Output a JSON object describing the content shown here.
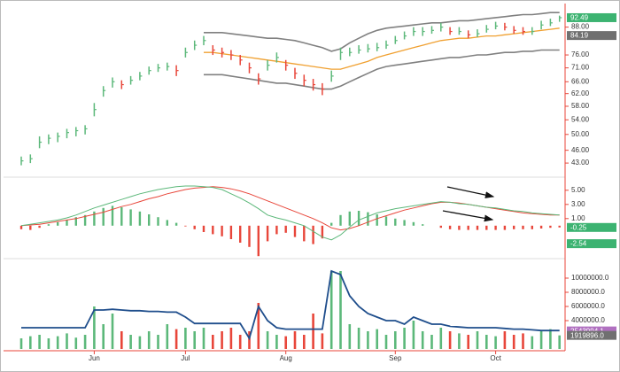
{
  "chart_data": [
    {
      "type": "ohlc",
      "yscale": "log",
      "ylim": [
        40.3,
        97.8
      ],
      "yticks": [
        {
          "value": 43,
          "label": "43.00"
        },
        {
          "value": 46,
          "label": "46.00"
        },
        {
          "value": 50,
          "label": "50.00"
        },
        {
          "value": 54,
          "label": "54.00"
        },
        {
          "value": 58,
          "label": "58.00"
        },
        {
          "value": 62,
          "label": "62.00"
        },
        {
          "value": 66,
          "label": "66.00"
        },
        {
          "value": 71,
          "label": "71.00"
        },
        {
          "value": 76,
          "label": "76.00"
        },
        {
          "value": 88,
          "label": "88.00"
        }
      ],
      "up_color": "#5cb87a",
      "down_color": "#e8463a",
      "band_color": "#808080",
      "middle_color": "#f0a030",
      "high": [
        44.5,
        45,
        49.5,
        50,
        50.5,
        51.5,
        52,
        52.5,
        59,
        64.5,
        67.5,
        66.5,
        68,
        69.5,
        71.5,
        72.5,
        73,
        72,
        79,
        82,
        84,
        80,
        79,
        78,
        76,
        73,
        69,
        74,
        77,
        74,
        71,
        68.5,
        67,
        65.5,
        70,
        79,
        79,
        80,
        80.5,
        81,
        82,
        84,
        86,
        88,
        88,
        88.5,
        90,
        88,
        88,
        86.5,
        87,
        89,
        90.5,
        90,
        88.5,
        88,
        88,
        91,
        92,
        93.5
      ],
      "low": [
        42.5,
        43,
        46.5,
        47.5,
        48,
        49,
        49.5,
        50,
        55,
        61,
        64,
        63.5,
        65,
        66.5,
        68.5,
        69.5,
        70,
        68,
        75,
        78,
        80,
        76,
        75,
        74,
        72,
        69,
        65,
        70,
        73,
        70,
        67,
        64.5,
        63,
        61.5,
        66,
        74,
        75.5,
        76.5,
        77,
        77.5,
        78.5,
        80.5,
        82.5,
        84,
        84,
        85,
        86,
        84.5,
        84.5,
        83,
        83.5,
        85.5,
        87,
        86.5,
        85,
        84.5,
        84.5,
        87,
        88.5,
        90.5
      ],
      "close": [
        43.5,
        44,
        48,
        49,
        49.5,
        50.5,
        51,
        51.5,
        57,
        63,
        66,
        65,
        66.5,
        68,
        70,
        71,
        71.5,
        70,
        77,
        80,
        82,
        78,
        77,
        76,
        74,
        71,
        67,
        72,
        75,
        72,
        69,
        66.5,
        65,
        63.5,
        68,
        77,
        77,
        78,
        78.5,
        79,
        80,
        82,
        84,
        86,
        86,
        86.5,
        88,
        86,
        86,
        84.5,
        85,
        87,
        88.5,
        88,
        86.5,
        86,
        86,
        89,
        90,
        92.49
      ],
      "upper": [
        null,
        null,
        null,
        null,
        null,
        null,
        null,
        null,
        null,
        null,
        null,
        null,
        null,
        null,
        null,
        null,
        null,
        null,
        null,
        null,
        85.5,
        85.5,
        85.5,
        85,
        84.5,
        84,
        83.5,
        83,
        83,
        82.5,
        82,
        81,
        80,
        79,
        77.5,
        78.5,
        81,
        83,
        85,
        86.5,
        87.5,
        88,
        88.5,
        89,
        89.5,
        90,
        90,
        90.5,
        91,
        91,
        91.5,
        92,
        92.5,
        93,
        93.5,
        94,
        94,
        94.5,
        95,
        95
      ],
      "middle": [
        null,
        null,
        null,
        null,
        null,
        null,
        null,
        null,
        null,
        null,
        null,
        null,
        null,
        null,
        null,
        null,
        null,
        null,
        null,
        null,
        77,
        77,
        76.5,
        76,
        75.5,
        75,
        74.5,
        74,
        73.5,
        73,
        72.5,
        72,
        71.5,
        71,
        70.5,
        70.5,
        71.5,
        72.5,
        73.5,
        75,
        76,
        77,
        78,
        79,
        80,
        81,
        82,
        82.5,
        83,
        83,
        83.5,
        84,
        84,
        84.5,
        85,
        85.5,
        86,
        86.5,
        87,
        87.5
      ],
      "lower": [
        null,
        null,
        null,
        null,
        null,
        null,
        null,
        null,
        null,
        null,
        null,
        null,
        null,
        null,
        null,
        null,
        null,
        null,
        null,
        null,
        68.5,
        68.5,
        68.5,
        68,
        67.5,
        67,
        66.5,
        66,
        65.5,
        65.5,
        65,
        64.5,
        64,
        63.5,
        63.5,
        64.5,
        66,
        67.5,
        69,
        70.5,
        71.5,
        72,
        72.5,
        73,
        73.5,
        74,
        74.5,
        75,
        75,
        75.5,
        76,
        76,
        76.5,
        77,
        77,
        77.5,
        77.5,
        78,
        78,
        78
      ],
      "badges": [
        {
          "value": 92.49,
          "color": "#3cb371"
        },
        {
          "value": 84.19,
          "color": "#707070"
        }
      ]
    },
    {
      "type": "macd",
      "ylim": [
        -4.4,
        6.6
      ],
      "yticks": [
        {
          "value": 5,
          "label": "5.00"
        },
        {
          "value": 3,
          "label": "3.00"
        },
        {
          "value": 1,
          "label": "1.00"
        }
      ],
      "macd_color": "#5cb87a",
      "signal_color": "#e8463a",
      "up_color": "#5cb87a",
      "down_color": "#e8463a",
      "histogram": [
        -0.5,
        -0.6,
        -0.3,
        0.2,
        0.5,
        0.8,
        1.2,
        1.5,
        2.0,
        2.5,
        2.8,
        2.6,
        2.3,
        2.0,
        1.6,
        1.2,
        0.8,
        0.4,
        -0.1,
        -0.5,
        -0.9,
        -1.2,
        -1.5,
        -1.9,
        -2.4,
        -3.0,
        -4.3,
        -2.2,
        -1.2,
        -1.0,
        -1.6,
        -2.2,
        -2.6,
        -1.8,
        0.4,
        1.5,
        2.0,
        2.1,
        1.9,
        1.6,
        1.3,
        1.0,
        0.8,
        0.5,
        0.2,
        0,
        -0.3,
        -0.5,
        -0.6,
        -0.6,
        -0.6,
        -0.6,
        -0.6,
        -0.6,
        -0.5,
        -0.5,
        -0.5,
        -0.4,
        -0.3,
        -0.25
      ],
      "macd": [
        0,
        0.2,
        0.4,
        0.6,
        0.8,
        1.1,
        1.5,
        2.0,
        2.5,
        2.9,
        3.3,
        3.7,
        4.1,
        4.5,
        4.8,
        5.1,
        5.3,
        5.5,
        5.6,
        5.6,
        5.5,
        5.4,
        5.1,
        4.5,
        3.9,
        3.2,
        2.4,
        1.5,
        1.1,
        0.8,
        0.4,
        0,
        -0.8,
        -1.6,
        -2.0,
        -1.3,
        -0.2,
        0.8,
        1.3,
        1.8,
        2.1,
        2.4,
        2.6,
        2.8,
        3.0,
        3.2,
        3.4,
        3.3,
        3.1,
        3.0,
        2.8,
        2.6,
        2.5,
        2.3,
        2.1,
        2.0,
        1.8,
        1.7,
        1.6,
        1.5
      ],
      "signal": [
        0,
        0.1,
        0.2,
        0.4,
        0.6,
        0.8,
        1.0,
        1.3,
        1.6,
        1.9,
        2.3,
        2.7,
        3.0,
        3.4,
        3.8,
        4.1,
        4.5,
        4.8,
        5.1,
        5.3,
        5.4,
        5.5,
        5.4,
        5.2,
        4.9,
        4.5,
        4.0,
        3.5,
        3.0,
        2.5,
        2.0,
        1.5,
        1.0,
        0.4,
        -0.3,
        -0.6,
        -0.4,
        0,
        0.5,
        1.0,
        1.4,
        1.8,
        2.2,
        2.5,
        2.8,
        3.1,
        3.3,
        3.3,
        3.2,
        3.0,
        2.8,
        2.6,
        2.4,
        2.2,
        2.0,
        1.8,
        1.7,
        1.6,
        1.5,
        1.5
      ],
      "badges": [
        {
          "value": -0.25,
          "color": "#3cb371"
        },
        {
          "value": -2.54,
          "color": "#3cb371"
        }
      ]
    },
    {
      "type": "volume",
      "ylim": [
        0,
        12500000
      ],
      "yticks": [
        {
          "value": 4000000,
          "label": "4000000.0"
        },
        {
          "value": 6000000,
          "label": "6000000.0"
        },
        {
          "value": 8000000,
          "label": "8000000.0"
        },
        {
          "value": 10000000,
          "label": "10000000.0"
        }
      ],
      "categories": [
        null,
        null,
        null,
        null,
        null,
        null,
        null,
        null,
        "Jun",
        null,
        null,
        null,
        null,
        null,
        null,
        null,
        null,
        null,
        "Jul",
        null,
        null,
        null,
        null,
        null,
        null,
        null,
        null,
        null,
        null,
        "Aug",
        null,
        null,
        null,
        null,
        null,
        null,
        null,
        null,
        null,
        null,
        null,
        "Sep",
        null,
        null,
        null,
        null,
        null,
        null,
        null,
        null,
        null,
        null,
        "Oct",
        null,
        null,
        null,
        null,
        null,
        null,
        null
      ],
      "average_color": "#1f4e8c",
      "values": [
        1500000,
        1800000,
        2000000,
        1500000,
        1800000,
        2200000,
        1600000,
        2000000,
        6000000,
        3500000,
        5000000,
        2500000,
        2000000,
        1800000,
        2500000,
        2000000,
        3500000,
        2800000,
        3000000,
        2500000,
        3000000,
        2000000,
        2500000,
        3000000,
        2000000,
        2500000,
        6500000,
        2500000,
        2000000,
        1800000,
        2500000,
        2000000,
        5000000,
        2200000,
        11000000,
        11000000,
        3500000,
        3000000,
        2500000,
        2800000,
        2000000,
        2500000,
        3000000,
        4000000,
        2500000,
        2000000,
        3000000,
        2500000,
        2200000,
        2000000,
        2500000,
        2000000,
        1800000,
        2500000,
        2000000,
        2200000,
        1800000,
        2500000,
        2800000,
        1919896
      ],
      "average": [
        3000000,
        3000000,
        3000000,
        3000000,
        3000000,
        3000000,
        3000000,
        3000000,
        5500000,
        5500000,
        5600000,
        5500000,
        5400000,
        5400000,
        5300000,
        5300000,
        5200000,
        5200000,
        4500000,
        3600000,
        3600000,
        3600000,
        3600000,
        3600000,
        3600000,
        1500000,
        6000000,
        4000000,
        3000000,
        2800000,
        2800000,
        2800000,
        2800000,
        2800000,
        11000000,
        10500000,
        7500000,
        6000000,
        5000000,
        4500000,
        4000000,
        4000000,
        3500000,
        4500000,
        4000000,
        3500000,
        3500000,
        3200000,
        3100000,
        3000000,
        3000000,
        3000000,
        3000000,
        2900000,
        2800000,
        2800000,
        2700000,
        2600000,
        2600000,
        2600000
      ],
      "badges": [
        {
          "value": 2543994.1,
          "color": "#b070c0"
        },
        {
          "value": 1919896,
          "label": "1919896.0",
          "color": "#707070"
        }
      ]
    }
  ]
}
